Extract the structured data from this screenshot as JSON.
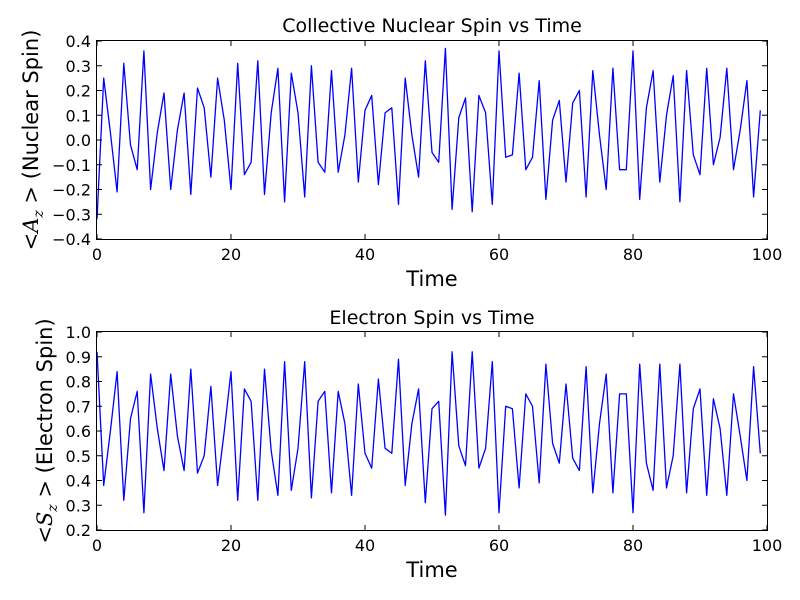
{
  "chart_data": [
    {
      "type": "line",
      "title": "Collective Nuclear Spin vs Time",
      "xlabel": "Time",
      "ylabel": {
        "symbol": "<A",
        "subscript": "z",
        "close": " >",
        "text": " (Nuclear Spin)"
      },
      "xlim": [
        0,
        100
      ],
      "ylim": [
        -0.4,
        0.4
      ],
      "xticks": [
        "0",
        "20",
        "40",
        "60",
        "80",
        "100"
      ],
      "yticks": [
        "0.4",
        "0.3",
        "0.2",
        "0.1",
        "0.0",
        "−0.1",
        "−0.2",
        "−0.3",
        "−0.4"
      ],
      "xtick_values": [
        0,
        20,
        40,
        60,
        80,
        100
      ],
      "ytick_values": [
        0.4,
        0.3,
        0.2,
        0.1,
        0.0,
        -0.1,
        -0.2,
        -0.3,
        -0.4
      ],
      "grid": false,
      "series": [
        {
          "color": "#0000ff",
          "x": [
            0,
            1,
            2,
            3,
            4,
            5,
            6,
            7,
            8,
            9,
            10,
            11,
            12,
            13,
            14,
            15,
            16,
            17,
            18,
            19,
            20,
            21,
            22,
            23,
            24,
            25,
            26,
            27,
            28,
            29,
            30,
            31,
            32,
            33,
            34,
            35,
            36,
            37,
            38,
            39,
            40,
            41,
            42,
            43,
            44,
            45,
            46,
            47,
            48,
            49,
            50,
            51,
            52,
            53,
            54,
            55,
            56,
            57,
            58,
            59,
            60,
            61,
            62,
            63,
            64,
            65,
            66,
            67,
            68,
            69,
            70,
            71,
            72,
            73,
            74,
            75,
            76,
            77,
            78,
            79,
            80,
            81,
            82,
            83,
            84,
            85,
            86,
            87,
            88,
            89,
            90,
            91,
            92,
            93,
            94,
            95,
            96,
            97,
            98,
            99
          ],
          "y": [
            -0.32,
            0.25,
            0.03,
            -0.21,
            0.31,
            -0.02,
            -0.12,
            0.36,
            -0.2,
            0.03,
            0.19,
            -0.2,
            0.04,
            0.19,
            -0.22,
            0.21,
            0.13,
            -0.15,
            0.25,
            0.08,
            -0.2,
            0.31,
            -0.14,
            -0.09,
            0.32,
            -0.22,
            0.11,
            0.29,
            -0.25,
            0.27,
            0.11,
            -0.23,
            0.3,
            -0.09,
            -0.13,
            0.28,
            -0.13,
            0.02,
            0.29,
            -0.17,
            0.12,
            0.18,
            -0.18,
            0.11,
            0.13,
            -0.26,
            0.25,
            0.02,
            -0.15,
            0.32,
            -0.05,
            -0.09,
            0.37,
            -0.28,
            0.09,
            0.17,
            -0.29,
            0.18,
            0.11,
            -0.26,
            0.36,
            -0.07,
            -0.06,
            0.27,
            -0.12,
            -0.07,
            0.24,
            -0.24,
            0.08,
            0.16,
            -0.17,
            0.15,
            0.2,
            -0.23,
            0.28,
            0.02,
            -0.2,
            0.29,
            -0.12,
            -0.12,
            0.36,
            -0.24,
            0.13,
            0.28,
            -0.17,
            0.1,
            0.26,
            -0.25,
            0.28,
            -0.06,
            -0.14,
            0.29,
            -0.1,
            0.01,
            0.29,
            -0.12,
            0.04,
            0.24,
            -0.23,
            0.12
          ]
        }
      ]
    },
    {
      "type": "line",
      "title": "Electron Spin vs Time",
      "xlabel": "Time",
      "ylabel": {
        "symbol": "<S",
        "subscript": "z",
        "close": " >",
        "text": " (Electron Spin)"
      },
      "xlim": [
        0,
        100
      ],
      "ylim": [
        0.2,
        1.0
      ],
      "xticks": [
        "0",
        "20",
        "40",
        "60",
        "80",
        "100"
      ],
      "yticks": [
        "1.0",
        "0.9",
        "0.8",
        "0.7",
        "0.6",
        "0.5",
        "0.4",
        "0.3",
        "0.2"
      ],
      "xtick_values": [
        0,
        20,
        40,
        60,
        80,
        100
      ],
      "ytick_values": [
        1.0,
        0.9,
        0.8,
        0.7,
        0.6,
        0.5,
        0.4,
        0.3,
        0.2
      ],
      "grid": false,
      "series": [
        {
          "color": "#0000ff",
          "x": [
            0,
            1,
            2,
            3,
            4,
            5,
            6,
            7,
            8,
            9,
            10,
            11,
            12,
            13,
            14,
            15,
            16,
            17,
            18,
            19,
            20,
            21,
            22,
            23,
            24,
            25,
            26,
            27,
            28,
            29,
            30,
            31,
            32,
            33,
            34,
            35,
            36,
            37,
            38,
            39,
            40,
            41,
            42,
            43,
            44,
            45,
            46,
            47,
            48,
            49,
            50,
            51,
            52,
            53,
            54,
            55,
            56,
            57,
            58,
            59,
            60,
            61,
            62,
            63,
            64,
            65,
            66,
            67,
            68,
            69,
            70,
            71,
            72,
            73,
            74,
            75,
            76,
            77,
            78,
            79,
            80,
            81,
            82,
            83,
            84,
            85,
            86,
            87,
            88,
            89,
            90,
            91,
            92,
            93,
            94,
            95,
            96,
            97,
            98,
            99
          ],
          "y": [
            0.92,
            0.38,
            0.6,
            0.84,
            0.32,
            0.65,
            0.76,
            0.27,
            0.83,
            0.61,
            0.44,
            0.83,
            0.58,
            0.44,
            0.85,
            0.43,
            0.5,
            0.78,
            0.38,
            0.6,
            0.84,
            0.32,
            0.77,
            0.72,
            0.32,
            0.85,
            0.52,
            0.34,
            0.88,
            0.36,
            0.53,
            0.88,
            0.33,
            0.72,
            0.76,
            0.35,
            0.76,
            0.63,
            0.34,
            0.79,
            0.51,
            0.45,
            0.81,
            0.53,
            0.51,
            0.89,
            0.38,
            0.63,
            0.77,
            0.31,
            0.69,
            0.72,
            0.26,
            0.92,
            0.54,
            0.46,
            0.92,
            0.45,
            0.53,
            0.88,
            0.27,
            0.7,
            0.69,
            0.37,
            0.75,
            0.7,
            0.39,
            0.87,
            0.55,
            0.47,
            0.79,
            0.49,
            0.44,
            0.86,
            0.35,
            0.63,
            0.83,
            0.35,
            0.75,
            0.75,
            0.27,
            0.87,
            0.47,
            0.36,
            0.87,
            0.37,
            0.5,
            0.87,
            0.35,
            0.69,
            0.77,
            0.34,
            0.73,
            0.61,
            0.34,
            0.75,
            0.58,
            0.4,
            0.86,
            0.51
          ]
        }
      ]
    }
  ]
}
